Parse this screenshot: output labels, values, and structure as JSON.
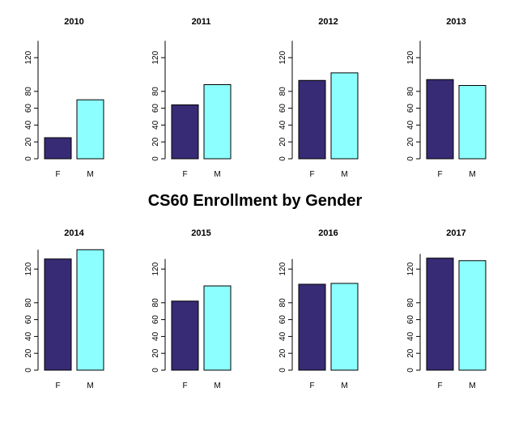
{
  "title": "CS60 Enrollment by Gender",
  "colors": {
    "F": "#372b75",
    "M": "#8cffff"
  },
  "chart_data": [
    {
      "type": "bar",
      "title": "2010",
      "categories": [
        "F",
        "M"
      ],
      "values": [
        25,
        70
      ],
      "yticks": [
        0,
        20,
        40,
        60,
        80,
        120
      ],
      "ylim": [
        0,
        140
      ]
    },
    {
      "type": "bar",
      "title": "2011",
      "categories": [
        "F",
        "M"
      ],
      "values": [
        64,
        88
      ],
      "yticks": [
        0,
        20,
        40,
        60,
        80,
        120
      ],
      "ylim": [
        0,
        140
      ]
    },
    {
      "type": "bar",
      "title": "2012",
      "categories": [
        "F",
        "M"
      ],
      "values": [
        93,
        102
      ],
      "yticks": [
        0,
        20,
        40,
        60,
        80,
        120
      ],
      "ylim": [
        0,
        140
      ]
    },
    {
      "type": "bar",
      "title": "2013",
      "categories": [
        "F",
        "M"
      ],
      "values": [
        94,
        87
      ],
      "yticks": [
        0,
        20,
        40,
        60,
        80,
        120
      ],
      "ylim": [
        0,
        140
      ]
    },
    {
      "type": "bar",
      "title": "2014",
      "categories": [
        "F",
        "M"
      ],
      "values": [
        132,
        143
      ],
      "yticks": [
        0,
        20,
        40,
        60,
        80,
        120
      ],
      "ylim": [
        0,
        143
      ]
    },
    {
      "type": "bar",
      "title": "2015",
      "categories": [
        "F",
        "M"
      ],
      "values": [
        82,
        100
      ],
      "yticks": [
        0,
        20,
        40,
        60,
        80,
        120
      ],
      "ylim": [
        0,
        132
      ]
    },
    {
      "type": "bar",
      "title": "2016",
      "categories": [
        "F",
        "M"
      ],
      "values": [
        102,
        103
      ],
      "yticks": [
        0,
        20,
        40,
        60,
        80,
        120
      ],
      "ylim": [
        0,
        132
      ]
    },
    {
      "type": "bar",
      "title": "2017",
      "categories": [
        "F",
        "M"
      ],
      "values": [
        133,
        130
      ],
      "yticks": [
        0,
        20,
        40,
        60,
        80,
        120
      ],
      "ylim": [
        0,
        138
      ]
    }
  ]
}
